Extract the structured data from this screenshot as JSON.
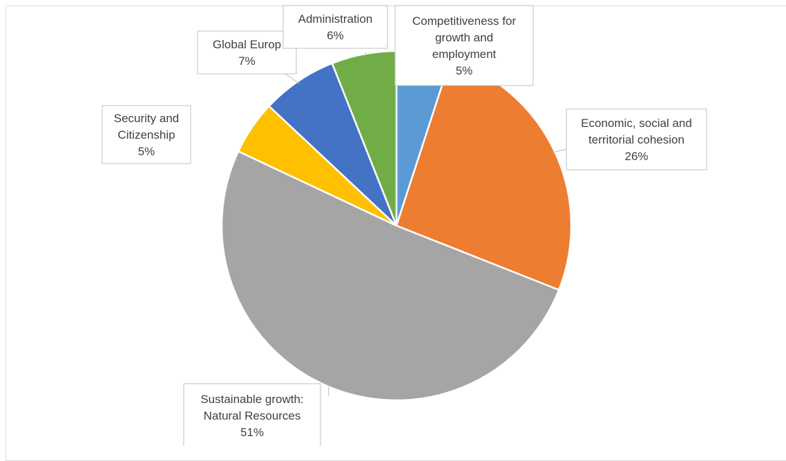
{
  "chart_data": {
    "type": "pie",
    "title": "",
    "slices": [
      {
        "label": "Competitiveness for growth and employment",
        "label_lines": [
          "Competitiveness for",
          "growth and",
          "employment"
        ],
        "value": 5,
        "value_label": "5%",
        "color": "#5b9bd5"
      },
      {
        "label": "Economic, social and territorial cohesion",
        "label_lines": [
          "Economic, social and",
          "territorial cohesion"
        ],
        "value": 26,
        "value_label": "26%",
        "color": "#ed7d31"
      },
      {
        "label": "Sustainable growth: Natural Resources",
        "label_lines": [
          "Sustainable growth:",
          "Natural Resources"
        ],
        "value": 51,
        "value_label": "51%",
        "color": "#a5a5a5"
      },
      {
        "label": "Security and Citizenship",
        "label_lines": [
          "Security and",
          "Citizenship"
        ],
        "value": 5,
        "value_label": "5%",
        "color": "#ffc000"
      },
      {
        "label": "Global Europe",
        "label_lines": [
          "Global Europ"
        ],
        "value": 7,
        "value_label": "7%",
        "color": "#4472c4"
      },
      {
        "label": "Administration",
        "label_lines": [
          "Administration"
        ],
        "value": 6,
        "value_label": "6%",
        "color": "#70ad47"
      }
    ],
    "legend": "none",
    "data_labels": "callout boxes"
  }
}
